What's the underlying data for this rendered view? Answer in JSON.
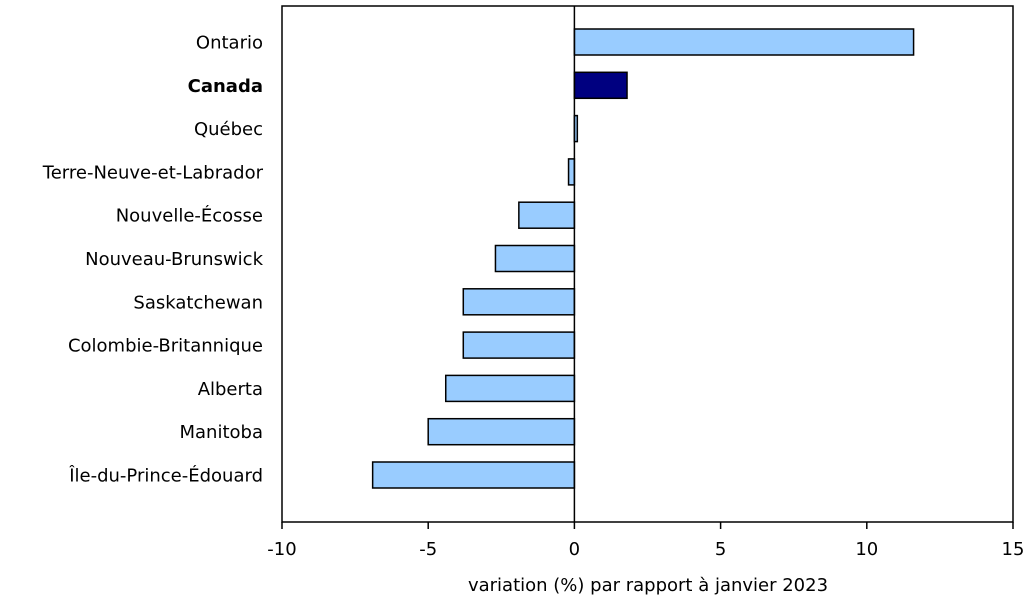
{
  "chart_data": {
    "type": "bar",
    "orientation": "horizontal",
    "categories": [
      "Ontario",
      "Canada",
      "Québec",
      "Terre-Neuve-et-Labrador",
      "Nouvelle-Écosse",
      "Nouveau-Brunswick",
      "Saskatchewan",
      "Colombie-Britannique",
      "Alberta",
      "Manitoba",
      "Île-du-Prince-Édouard"
    ],
    "values": [
      11.6,
      1.8,
      0.1,
      -0.2,
      -1.9,
      -2.7,
      -3.8,
      -3.8,
      -4.4,
      -5.0,
      -6.9
    ],
    "highlight_category": "Canada",
    "xlabel": "variation (%) par rapport à janvier 2023",
    "xlim": [
      -10,
      15
    ],
    "xticks": [
      -10,
      -5,
      0,
      5,
      10,
      15
    ],
    "xtick_labels": [
      "-10",
      "-5",
      "0",
      "5",
      "10",
      "15"
    ],
    "grid": false,
    "legend": "none",
    "colors": {
      "bar": "#99ccff",
      "highlight_bar": "#000080",
      "bar_outline": "#000000",
      "axis": "#000000"
    }
  }
}
